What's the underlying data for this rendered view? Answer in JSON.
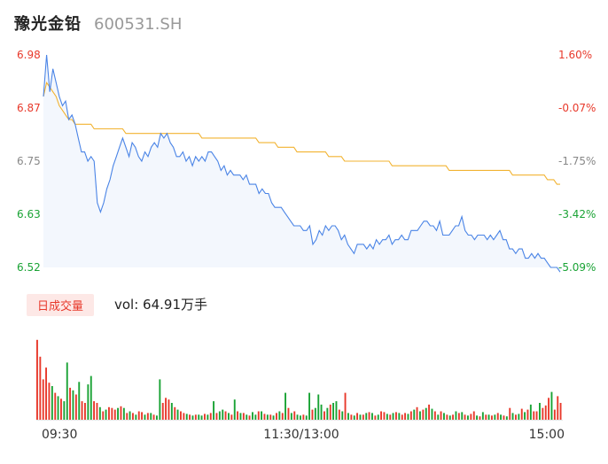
{
  "header": {
    "name": "豫光金铅",
    "code": "600531.SH"
  },
  "volume_panel": {
    "badge": "日成交量",
    "label": "vol: 64.91万手"
  },
  "colors": {
    "up": "#e8392b",
    "down": "#1aa335",
    "price_line": "#4a84e6",
    "avg_line": "#f2b331",
    "area_fill": "#f3f7fd"
  },
  "chart_data": {
    "type": "line",
    "y_left_ticks": [
      "6.98",
      "6.87",
      "6.75",
      "6.63",
      "6.52"
    ],
    "y_right_ticks": [
      "1.60%",
      "-0.07%",
      "-1.75%",
      "-3.42%",
      "-5.09%"
    ],
    "x_ticks": [
      "09:30",
      "11:30/13:00",
      "15:00"
    ],
    "ylim": [
      6.52,
      6.98
    ],
    "series": [
      {
        "values": [
          6.89,
          6.98,
          6.9,
          6.95,
          6.92,
          6.89,
          6.87,
          6.88,
          6.84,
          6.85,
          6.83,
          6.8,
          6.77,
          6.77,
          6.75,
          6.76,
          6.75,
          6.66,
          6.64,
          6.66,
          6.69,
          6.71,
          6.74,
          6.76,
          6.78,
          6.8,
          6.78,
          6.76,
          6.79,
          6.78,
          6.76,
          6.75,
          6.77,
          6.76,
          6.78,
          6.79,
          6.78,
          6.81,
          6.8,
          6.81,
          6.79,
          6.78,
          6.76,
          6.76,
          6.77,
          6.75,
          6.76,
          6.74,
          6.76,
          6.75,
          6.76,
          6.75,
          6.77,
          6.77,
          6.76,
          6.75,
          6.73,
          6.74,
          6.72,
          6.73,
          6.72,
          6.72,
          6.72,
          6.71,
          6.72,
          6.7,
          6.7,
          6.7,
          6.68,
          6.69,
          6.68,
          6.68,
          6.66,
          6.65,
          6.65,
          6.65,
          6.64,
          6.63,
          6.62,
          6.61,
          6.61,
          6.61,
          6.6,
          6.6,
          6.61,
          6.57,
          6.58,
          6.6,
          6.59,
          6.61,
          6.6,
          6.61,
          6.61,
          6.6,
          6.58,
          6.59,
          6.57,
          6.56,
          6.55,
          6.57,
          6.57,
          6.57,
          6.56,
          6.57,
          6.56,
          6.58,
          6.57,
          6.58,
          6.58,
          6.59,
          6.57,
          6.58,
          6.58,
          6.59,
          6.58,
          6.58,
          6.6,
          6.6,
          6.6,
          6.61,
          6.62,
          6.62,
          6.61,
          6.61,
          6.6,
          6.62,
          6.59,
          6.59,
          6.59,
          6.6,
          6.61,
          6.61,
          6.63,
          6.6,
          6.59,
          6.59,
          6.58,
          6.59,
          6.59,
          6.59,
          6.58,
          6.59,
          6.58,
          6.59,
          6.6,
          6.58,
          6.58,
          6.56,
          6.56,
          6.55,
          6.56,
          6.56,
          6.54,
          6.54,
          6.55,
          6.54,
          6.55,
          6.54,
          6.54,
          6.53,
          6.52,
          6.52,
          6.52,
          6.51
        ],
        "color": "#4a84e6"
      },
      {
        "values": [
          6.89,
          6.92,
          6.91,
          6.9,
          6.89,
          6.87,
          6.86,
          6.85,
          6.84,
          6.84,
          6.83,
          6.83,
          6.83,
          6.83,
          6.83,
          6.83,
          6.82,
          6.82,
          6.82,
          6.82,
          6.82,
          6.82,
          6.82,
          6.82,
          6.82,
          6.82,
          6.81,
          6.81,
          6.81,
          6.81,
          6.81,
          6.81,
          6.81,
          6.81,
          6.81,
          6.81,
          6.81,
          6.81,
          6.81,
          6.81,
          6.81,
          6.81,
          6.81,
          6.81,
          6.81,
          6.81,
          6.81,
          6.81,
          6.81,
          6.81,
          6.8,
          6.8,
          6.8,
          6.8,
          6.8,
          6.8,
          6.8,
          6.8,
          6.8,
          6.8,
          6.8,
          6.8,
          6.8,
          6.8,
          6.8,
          6.8,
          6.8,
          6.8,
          6.79,
          6.79,
          6.79,
          6.79,
          6.79,
          6.79,
          6.78,
          6.78,
          6.78,
          6.78,
          6.78,
          6.78,
          6.77,
          6.77,
          6.77,
          6.77,
          6.77,
          6.77,
          6.77,
          6.77,
          6.77,
          6.77,
          6.76,
          6.76,
          6.76,
          6.76,
          6.76,
          6.75,
          6.75,
          6.75,
          6.75,
          6.75,
          6.75,
          6.75,
          6.75,
          6.75,
          6.75,
          6.75,
          6.75,
          6.75,
          6.75,
          6.75,
          6.74,
          6.74,
          6.74,
          6.74,
          6.74,
          6.74,
          6.74,
          6.74,
          6.74,
          6.74,
          6.74,
          6.74,
          6.74,
          6.74,
          6.74,
          6.74,
          6.74,
          6.74,
          6.73,
          6.73,
          6.73,
          6.73,
          6.73,
          6.73,
          6.73,
          6.73,
          6.73,
          6.73,
          6.73,
          6.73,
          6.73,
          6.73,
          6.73,
          6.73,
          6.73,
          6.73,
          6.73,
          6.73,
          6.72,
          6.72,
          6.72,
          6.72,
          6.72,
          6.72,
          6.72,
          6.72,
          6.72,
          6.72,
          6.72,
          6.71,
          6.71,
          6.71,
          6.7,
          6.7
        ],
        "color": "#f2b331"
      }
    ],
    "volume": {
      "values": [
        0.95,
        0.75,
        0.48,
        0.62,
        0.44,
        0.4,
        0.32,
        0.28,
        0.25,
        0.22,
        0.68,
        0.38,
        0.35,
        0.3,
        0.45,
        0.22,
        0.2,
        0.42,
        0.52,
        0.22,
        0.2,
        0.15,
        0.1,
        0.12,
        0.15,
        0.14,
        0.12,
        0.14,
        0.16,
        0.14,
        0.08,
        0.1,
        0.08,
        0.06,
        0.1,
        0.09,
        0.06,
        0.08,
        0.08,
        0.06,
        0.05,
        0.48,
        0.2,
        0.26,
        0.24,
        0.2,
        0.15,
        0.12,
        0.1,
        0.08,
        0.07,
        0.06,
        0.05,
        0.06,
        0.06,
        0.05,
        0.07,
        0.06,
        0.08,
        0.22,
        0.08,
        0.1,
        0.12,
        0.1,
        0.08,
        0.06,
        0.24,
        0.1,
        0.08,
        0.08,
        0.06,
        0.05,
        0.09,
        0.06,
        0.1,
        0.1,
        0.07,
        0.06,
        0.06,
        0.05,
        0.08,
        0.1,
        0.08,
        0.32,
        0.14,
        0.08,
        0.1,
        0.06,
        0.05,
        0.06,
        0.05,
        0.32,
        0.12,
        0.14,
        0.3,
        0.18,
        0.1,
        0.14,
        0.18,
        0.2,
        0.22,
        0.12,
        0.1,
        0.32,
        0.08,
        0.06,
        0.05,
        0.08,
        0.06,
        0.06,
        0.08,
        0.09,
        0.08,
        0.05,
        0.06,
        0.1,
        0.09,
        0.07,
        0.06,
        0.08,
        0.09,
        0.08,
        0.06,
        0.08,
        0.07,
        0.1,
        0.12,
        0.15,
        0.1,
        0.12,
        0.14,
        0.18,
        0.13,
        0.1,
        0.06,
        0.1,
        0.08,
        0.06,
        0.05,
        0.06,
        0.1,
        0.08,
        0.09,
        0.06,
        0.05,
        0.07,
        0.1,
        0.05,
        0.04,
        0.09,
        0.06,
        0.06,
        0.05,
        0.06,
        0.08,
        0.06,
        0.05,
        0.04,
        0.14,
        0.08,
        0.06,
        0.07,
        0.13,
        0.09,
        0.12,
        0.18,
        0.1,
        0.1,
        0.2,
        0.14,
        0.17,
        0.26,
        0.33,
        0.12,
        0.28,
        0.2
      ],
      "up": [
        1,
        1,
        1,
        1,
        1,
        0,
        1,
        0,
        1,
        0,
        0,
        1,
        0,
        1,
        0,
        1,
        1,
        0,
        0,
        1,
        1,
        0,
        1,
        0,
        1,
        1,
        1,
        0,
        1,
        0,
        1,
        0,
        1,
        0,
        1,
        1,
        0,
        1,
        0,
        1,
        0,
        0,
        1,
        1,
        1,
        0,
        1,
        0,
        1,
        1,
        0,
        1,
        0,
        1,
        0,
        0,
        1,
        0,
        1,
        0,
        1,
        0,
        0,
        1,
        0,
        1,
        0,
        1,
        0,
        1,
        0,
        1,
        0,
        0,
        1,
        0,
        1,
        0,
        1,
        0,
        1,
        0,
        1,
        0,
        1,
        0,
        1,
        0,
        0,
        1,
        0,
        0,
        1,
        0,
        0,
        0,
        1,
        0,
        1,
        0,
        0,
        1,
        0,
        1,
        0,
        1,
        0,
        1,
        0,
        1,
        0,
        1,
        0,
        1,
        0,
        1,
        1,
        0,
        1,
        0,
        1,
        0,
        1,
        1,
        0,
        1,
        0,
        1,
        0,
        1,
        0,
        1,
        0,
        1,
        0,
        1,
        0,
        1,
        0,
        1,
        0,
        1,
        0,
        1,
        0,
        1,
        1,
        0,
        1,
        0,
        1,
        0,
        1,
        0,
        1,
        0,
        1,
        0,
        1,
        0,
        1,
        0,
        1,
        0,
        1,
        0,
        1,
        1,
        0,
        1,
        1,
        1,
        0,
        1,
        1,
        1
      ]
    }
  }
}
